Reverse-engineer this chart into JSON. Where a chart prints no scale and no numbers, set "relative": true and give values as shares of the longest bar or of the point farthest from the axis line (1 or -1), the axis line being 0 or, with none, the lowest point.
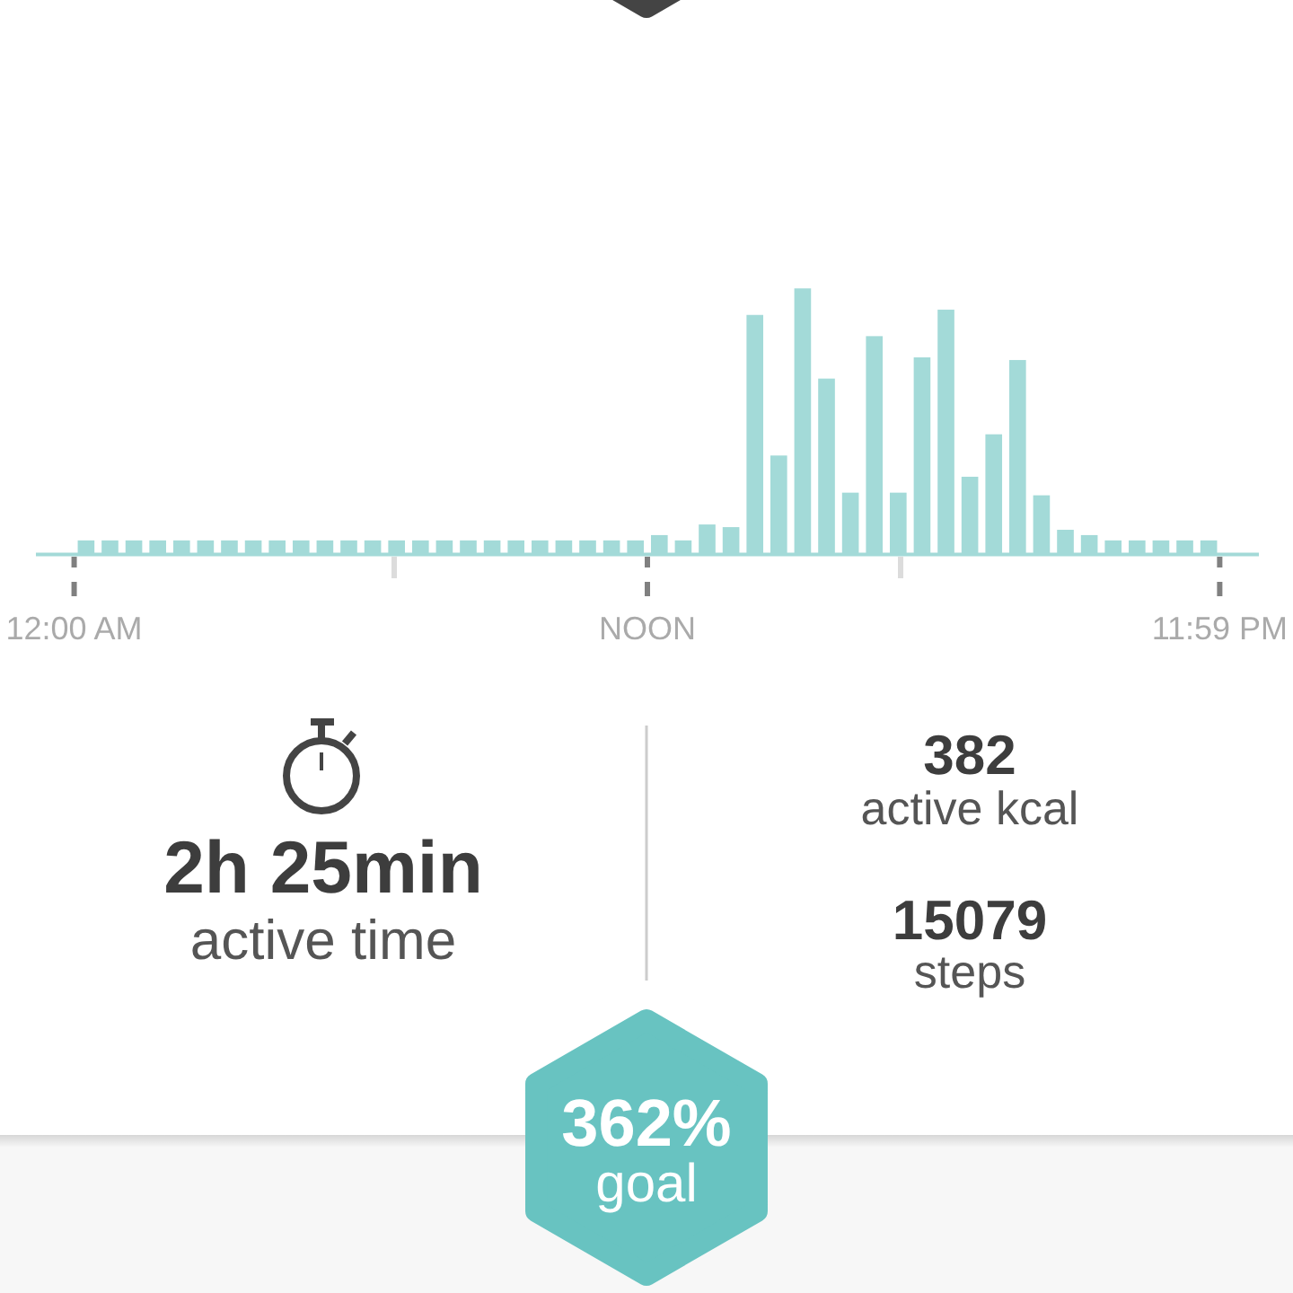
{
  "chart_data": [
    {
      "type": "bar",
      "relative": true,
      "x": [
        0.25,
        0.75,
        1.25,
        1.75,
        2.25,
        2.75,
        3.25,
        3.75,
        4.25,
        4.75,
        5.25,
        5.75,
        6.25,
        6.75,
        7.25,
        7.75,
        8.25,
        8.75,
        9.25,
        9.75,
        10.25,
        10.75,
        11.25,
        11.75,
        12.25,
        12.75,
        13.25,
        13.75,
        14.25,
        14.75,
        15.25,
        15.75,
        16.25,
        16.75,
        17.25,
        17.75,
        18.25,
        18.75,
        19.25,
        19.75,
        20.25,
        20.75,
        21.25,
        21.75,
        22.25,
        22.75,
        23.25,
        23.75
      ],
      "values": [
        0.05,
        0.05,
        0.05,
        0.05,
        0.05,
        0.05,
        0.05,
        0.05,
        0.05,
        0.05,
        0.05,
        0.05,
        0.05,
        0.05,
        0.05,
        0.05,
        0.05,
        0.05,
        0.05,
        0.05,
        0.05,
        0.05,
        0.05,
        0.05,
        0.07,
        0.05,
        0.11,
        0.1,
        0.9,
        0.37,
        1,
        0.66,
        0.23,
        0.82,
        0.23,
        0.74,
        0.92,
        0.29,
        0.45,
        0.73,
        0.22,
        0.09,
        0.07,
        0.05,
        0.05,
        0.05,
        0.05,
        0.05
      ],
      "color": "#a3dad8",
      "xlim": [
        -0.8,
        24.8
      ],
      "xticks": [
        {
          "value": 0,
          "label": "12:00 AM"
        },
        {
          "value": 6.7,
          "label": null
        },
        {
          "value": 12,
          "label": "NOON"
        },
        {
          "value": 17.3,
          "label": null
        },
        {
          "value": 23.98,
          "label": "11:59 PM"
        }
      ]
    },
    {
      "type": "other",
      "annotations": [
        "2h 25min",
        "active time",
        "382",
        "active kcal",
        "15079",
        "steps",
        "362%",
        "goal"
      ]
    }
  ]
}
